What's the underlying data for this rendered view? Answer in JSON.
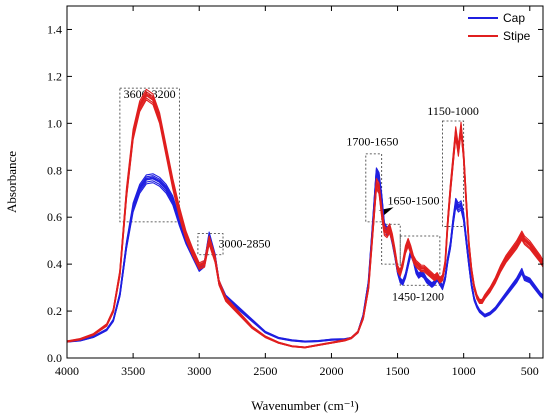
{
  "chart_data": {
    "type": "line",
    "title": "",
    "xlabel": "Wavenumber (cm⁻¹)",
    "ylabel": "Absorbance",
    "xlim": [
      4000,
      400
    ],
    "x_reversed": true,
    "ylim": [
      0.0,
      1.5
    ],
    "xticks": [
      4000,
      3500,
      3000,
      2500,
      2000,
      1500,
      1000,
      500
    ],
    "yticks": [
      0.0,
      0.2,
      0.4,
      0.6,
      0.8,
      1.0,
      1.2,
      1.4
    ],
    "grid": false,
    "legend_position": "top-right",
    "series": [
      {
        "name": "Cap",
        "color": "#1f1fe0",
        "x": [
          4000,
          3900,
          3800,
          3700,
          3650,
          3600,
          3550,
          3500,
          3450,
          3400,
          3350,
          3300,
          3250,
          3200,
          3150,
          3100,
          3050,
          3000,
          2960,
          2925,
          2880,
          2850,
          2800,
          2700,
          2600,
          2500,
          2400,
          2300,
          2200,
          2100,
          2000,
          1900,
          1850,
          1800,
          1760,
          1720,
          1690,
          1660,
          1640,
          1620,
          1600,
          1580,
          1560,
          1540,
          1520,
          1500,
          1480,
          1460,
          1440,
          1420,
          1400,
          1380,
          1360,
          1340,
          1320,
          1300,
          1280,
          1260,
          1240,
          1220,
          1200,
          1180,
          1160,
          1140,
          1120,
          1100,
          1080,
          1060,
          1040,
          1020,
          1000,
          980,
          960,
          940,
          920,
          900,
          880,
          860,
          840,
          800,
          760,
          720,
          680,
          640,
          600,
          560,
          540,
          500,
          460,
          420,
          400
        ],
        "y": [
          0.07,
          0.075,
          0.09,
          0.12,
          0.16,
          0.27,
          0.48,
          0.64,
          0.72,
          0.76,
          0.765,
          0.75,
          0.72,
          0.67,
          0.58,
          0.5,
          0.44,
          0.38,
          0.4,
          0.52,
          0.43,
          0.32,
          0.26,
          0.21,
          0.16,
          0.11,
          0.085,
          0.075,
          0.07,
          0.072,
          0.078,
          0.08,
          0.085,
          0.11,
          0.18,
          0.32,
          0.55,
          0.79,
          0.77,
          0.68,
          0.56,
          0.54,
          0.55,
          0.5,
          0.44,
          0.37,
          0.33,
          0.32,
          0.35,
          0.4,
          0.45,
          0.42,
          0.37,
          0.35,
          0.36,
          0.35,
          0.33,
          0.32,
          0.31,
          0.32,
          0.34,
          0.32,
          0.3,
          0.34,
          0.42,
          0.48,
          0.58,
          0.66,
          0.64,
          0.65,
          0.6,
          0.5,
          0.4,
          0.31,
          0.25,
          0.22,
          0.2,
          0.19,
          0.18,
          0.19,
          0.21,
          0.24,
          0.27,
          0.3,
          0.33,
          0.37,
          0.34,
          0.33,
          0.3,
          0.27,
          0.26
        ]
      },
      {
        "name": "Stipe",
        "color": "#e01f1f",
        "x": [
          4000,
          3900,
          3800,
          3700,
          3650,
          3600,
          3550,
          3500,
          3450,
          3400,
          3350,
          3300,
          3250,
          3200,
          3150,
          3100,
          3050,
          3000,
          2960,
          2925,
          2880,
          2850,
          2800,
          2700,
          2600,
          2500,
          2400,
          2300,
          2200,
          2100,
          2000,
          1900,
          1850,
          1800,
          1760,
          1720,
          1690,
          1660,
          1640,
          1620,
          1600,
          1580,
          1560,
          1540,
          1520,
          1500,
          1480,
          1460,
          1440,
          1420,
          1400,
          1380,
          1360,
          1340,
          1320,
          1300,
          1280,
          1260,
          1240,
          1220,
          1200,
          1180,
          1160,
          1140,
          1120,
          1100,
          1080,
          1060,
          1040,
          1020,
          1000,
          980,
          960,
          940,
          920,
          900,
          880,
          860,
          840,
          800,
          760,
          720,
          680,
          640,
          600,
          560,
          540,
          500,
          460,
          420,
          400
        ],
        "y": [
          0.07,
          0.08,
          0.1,
          0.14,
          0.2,
          0.36,
          0.7,
          0.95,
          1.07,
          1.12,
          1.1,
          1.02,
          0.88,
          0.74,
          0.62,
          0.52,
          0.45,
          0.39,
          0.4,
          0.5,
          0.42,
          0.32,
          0.25,
          0.19,
          0.13,
          0.09,
          0.065,
          0.05,
          0.045,
          0.055,
          0.065,
          0.075,
          0.085,
          0.11,
          0.17,
          0.3,
          0.52,
          0.74,
          0.72,
          0.62,
          0.54,
          0.53,
          0.55,
          0.51,
          0.45,
          0.38,
          0.36,
          0.4,
          0.46,
          0.49,
          0.46,
          0.42,
          0.4,
          0.39,
          0.38,
          0.38,
          0.37,
          0.36,
          0.35,
          0.34,
          0.35,
          0.33,
          0.34,
          0.4,
          0.58,
          0.72,
          0.84,
          0.96,
          0.88,
          0.98,
          0.86,
          0.66,
          0.48,
          0.37,
          0.3,
          0.26,
          0.24,
          0.24,
          0.26,
          0.29,
          0.33,
          0.38,
          0.42,
          0.45,
          0.48,
          0.52,
          0.5,
          0.48,
          0.45,
          0.42,
          0.4
        ]
      }
    ],
    "annotations": [
      {
        "text": "3600-3200",
        "x_range": [
          3600,
          3150
        ],
        "y_range": [
          0.58,
          1.15
        ]
      },
      {
        "text": "3000-2850",
        "x_range": [
          3010,
          2820
        ],
        "y_range": [
          0.44,
          0.53
        ]
      },
      {
        "text": "1700-1650",
        "x_range": [
          1740,
          1620
        ],
        "y_range": [
          0.58,
          0.87
        ]
      },
      {
        "text": "1650-1500",
        "x_range": [
          1620,
          1480
        ],
        "y_range": [
          0.4,
          0.57
        ]
      },
      {
        "text": "1450-1200",
        "x_range": [
          1480,
          1180
        ],
        "y_range": [
          0.31,
          0.52
        ]
      },
      {
        "text": "1150-1000",
        "x_range": [
          1160,
          1000
        ],
        "y_range": [
          0.56,
          1.01
        ]
      }
    ]
  }
}
